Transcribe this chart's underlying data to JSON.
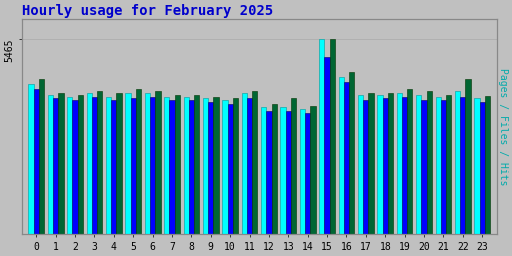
{
  "title": "Hourly usage for February 2025",
  "title_color": "#0000cc",
  "title_fontsize": 10,
  "background_color": "#c0c0c0",
  "plot_bg_color": "#c0c0c0",
  "hours": [
    0,
    1,
    2,
    3,
    4,
    5,
    6,
    7,
    8,
    9,
    10,
    11,
    12,
    13,
    14,
    15,
    16,
    17,
    18,
    19,
    20,
    21,
    22,
    23
  ],
  "hits": [
    4200,
    3900,
    3850,
    3950,
    3850,
    3950,
    3950,
    3850,
    3850,
    3800,
    3750,
    3950,
    3550,
    3550,
    3500,
    5465,
    4400,
    3900,
    3900,
    3950,
    3900,
    3850,
    4000,
    3800
  ],
  "files": [
    4050,
    3800,
    3750,
    3850,
    3750,
    3800,
    3850,
    3750,
    3750,
    3700,
    3650,
    3800,
    3450,
    3450,
    3400,
    4950,
    4250,
    3750,
    3800,
    3850,
    3750,
    3750,
    3850,
    3700
  ],
  "pages": [
    4350,
    3950,
    3900,
    4000,
    3950,
    4050,
    4000,
    3900,
    3900,
    3850,
    3800,
    4000,
    3650,
    3800,
    3600,
    5465,
    4550,
    3950,
    3950,
    4050,
    4000,
    3900,
    4350,
    3880
  ],
  "ylim_max": 5465,
  "ylabel": "Pages / Files / Hits",
  "ylabel_color": "#00aaaa",
  "bar_width": 0.27,
  "pages_color": "#006633",
  "files_color": "#0000ff",
  "hits_color": "#00ffff",
  "hits_edge_color": "#009999",
  "pages_edge_color": "#003300",
  "files_edge_color": "#000066",
  "grid_color": "#aaaaaa",
  "border_color": "#888888"
}
